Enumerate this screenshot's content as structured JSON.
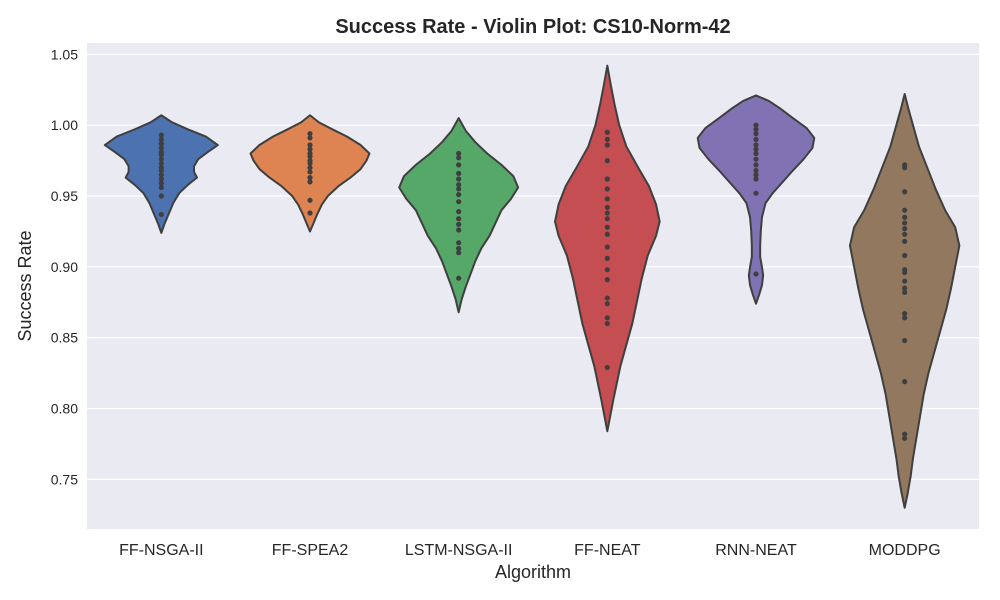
{
  "chart_data": {
    "type": "violin",
    "title": "Success Rate - Violin Plot: CS10-Norm-42",
    "xlabel": "Algorithm",
    "ylabel": "Success Rate",
    "ylim": [
      0.715,
      1.058
    ],
    "yticks": [
      "0.75",
      "0.80",
      "0.85",
      "0.90",
      "0.95",
      "1.00",
      "1.05"
    ],
    "ytick_values": [
      0.75,
      0.8,
      0.85,
      0.9,
      0.95,
      1.0,
      1.05
    ],
    "grid": true,
    "background": "#eaeaf2",
    "categories": [
      "FF-NSGA-II",
      "FF-SPEA2",
      "LSTM-NSGA-II",
      "FF-NEAT",
      "RNN-NEAT",
      "MODDPG"
    ],
    "series": [
      {
        "category": "FF-NSGA-II",
        "color": "#4c72b0",
        "range": [
          0.924,
          1.007
        ],
        "density": [
          [
            0.924,
            0.0
          ],
          [
            0.93,
            0.05
          ],
          [
            0.937,
            0.12
          ],
          [
            0.945,
            0.2
          ],
          [
            0.952,
            0.3
          ],
          [
            0.958,
            0.45
          ],
          [
            0.963,
            0.6
          ],
          [
            0.967,
            0.55
          ],
          [
            0.971,
            0.55
          ],
          [
            0.976,
            0.62
          ],
          [
            0.981,
            0.78
          ],
          [
            0.986,
            0.95
          ],
          [
            0.992,
            0.75
          ],
          [
            0.997,
            0.45
          ],
          [
            1.002,
            0.18
          ],
          [
            1.007,
            0.0
          ]
        ],
        "points": [
          0.993,
          0.99,
          0.987,
          0.984,
          0.981,
          0.979,
          0.976,
          0.973,
          0.97,
          0.968,
          0.965,
          0.962,
          0.959,
          0.956,
          0.95,
          0.937
        ]
      },
      {
        "category": "FF-SPEA2",
        "color": "#dd8452",
        "range": [
          0.925,
          1.007
        ],
        "density": [
          [
            0.925,
            0.0
          ],
          [
            0.931,
            0.06
          ],
          [
            0.937,
            0.12
          ],
          [
            0.944,
            0.2
          ],
          [
            0.95,
            0.3
          ],
          [
            0.957,
            0.48
          ],
          [
            0.963,
            0.68
          ],
          [
            0.969,
            0.85
          ],
          [
            0.975,
            0.95
          ],
          [
            0.98,
            1.0
          ],
          [
            0.986,
            0.85
          ],
          [
            0.992,
            0.62
          ],
          [
            0.997,
            0.38
          ],
          [
            1.002,
            0.15
          ],
          [
            1.007,
            0.0
          ]
        ],
        "points": [
          0.994,
          0.991,
          0.986,
          0.983,
          0.98,
          0.978,
          0.975,
          0.973,
          0.97,
          0.967,
          0.963,
          0.96,
          0.947,
          0.938
        ]
      },
      {
        "category": "LSTM-NSGA-II",
        "color": "#55a868",
        "range": [
          0.868,
          1.005
        ],
        "density": [
          [
            0.868,
            0.0
          ],
          [
            0.877,
            0.05
          ],
          [
            0.886,
            0.12
          ],
          [
            0.895,
            0.2
          ],
          [
            0.904,
            0.28
          ],
          [
            0.913,
            0.38
          ],
          [
            0.922,
            0.52
          ],
          [
            0.931,
            0.62
          ],
          [
            0.94,
            0.72
          ],
          [
            0.948,
            0.88
          ],
          [
            0.956,
            1.0
          ],
          [
            0.964,
            0.92
          ],
          [
            0.972,
            0.72
          ],
          [
            0.98,
            0.48
          ],
          [
            0.988,
            0.28
          ],
          [
            0.996,
            0.12
          ],
          [
            1.005,
            0.0
          ]
        ],
        "points": [
          0.98,
          0.977,
          0.972,
          0.966,
          0.962,
          0.958,
          0.955,
          0.951,
          0.946,
          0.939,
          0.934,
          0.93,
          0.926,
          0.917,
          0.913,
          0.91,
          0.892
        ]
      },
      {
        "category": "FF-NEAT",
        "color": "#c44e52",
        "range": [
          0.784,
          1.042
        ],
        "density": [
          [
            0.784,
            0.0
          ],
          [
            0.795,
            0.05
          ],
          [
            0.806,
            0.1
          ],
          [
            0.818,
            0.16
          ],
          [
            0.83,
            0.22
          ],
          [
            0.845,
            0.32
          ],
          [
            0.86,
            0.42
          ],
          [
            0.876,
            0.5
          ],
          [
            0.892,
            0.58
          ],
          [
            0.908,
            0.68
          ],
          [
            0.922,
            0.82
          ],
          [
            0.932,
            0.88
          ],
          [
            0.944,
            0.82
          ],
          [
            0.957,
            0.7
          ],
          [
            0.97,
            0.52
          ],
          [
            0.985,
            0.32
          ],
          [
            1.0,
            0.2
          ],
          [
            1.015,
            0.12
          ],
          [
            1.028,
            0.06
          ],
          [
            1.042,
            0.0
          ]
        ],
        "points": [
          0.995,
          0.99,
          0.986,
          0.975,
          0.962,
          0.955,
          0.948,
          0.942,
          0.938,
          0.934,
          0.928,
          0.923,
          0.914,
          0.906,
          0.898,
          0.891,
          0.878,
          0.874,
          0.864,
          0.86,
          0.829
        ]
      },
      {
        "category": "RNN-NEAT",
        "color": "#8172b3",
        "range": [
          0.874,
          1.021
        ],
        "density": [
          [
            0.874,
            0.0
          ],
          [
            0.88,
            0.05
          ],
          [
            0.887,
            0.1
          ],
          [
            0.894,
            0.12
          ],
          [
            0.9,
            0.1
          ],
          [
            0.907,
            0.07
          ],
          [
            0.915,
            0.07
          ],
          [
            0.925,
            0.08
          ],
          [
            0.935,
            0.1
          ],
          [
            0.945,
            0.16
          ],
          [
            0.952,
            0.28
          ],
          [
            0.96,
            0.45
          ],
          [
            0.968,
            0.62
          ],
          [
            0.976,
            0.8
          ],
          [
            0.984,
            0.95
          ],
          [
            0.991,
            0.98
          ],
          [
            0.998,
            0.85
          ],
          [
            1.005,
            0.62
          ],
          [
            1.012,
            0.4
          ],
          [
            1.017,
            0.22
          ],
          [
            1.021,
            0.0
          ]
        ],
        "points": [
          1.0,
          0.997,
          0.994,
          0.99,
          0.986,
          0.983,
          0.98,
          0.976,
          0.972,
          0.968,
          0.965,
          0.962,
          0.952,
          0.895
        ]
      },
      {
        "category": "MODDPG",
        "color": "#937860",
        "range": [
          0.73,
          1.022
        ],
        "density": [
          [
            0.73,
            0.0
          ],
          [
            0.74,
            0.05
          ],
          [
            0.752,
            0.1
          ],
          [
            0.765,
            0.14
          ],
          [
            0.78,
            0.2
          ],
          [
            0.795,
            0.26
          ],
          [
            0.81,
            0.32
          ],
          [
            0.825,
            0.4
          ],
          [
            0.84,
            0.5
          ],
          [
            0.855,
            0.6
          ],
          [
            0.87,
            0.7
          ],
          [
            0.885,
            0.78
          ],
          [
            0.9,
            0.85
          ],
          [
            0.915,
            0.92
          ],
          [
            0.928,
            0.85
          ],
          [
            0.94,
            0.68
          ],
          [
            0.955,
            0.52
          ],
          [
            0.97,
            0.38
          ],
          [
            0.985,
            0.24
          ],
          [
            1.0,
            0.14
          ],
          [
            1.012,
            0.06
          ],
          [
            1.022,
            0.0
          ]
        ],
        "points": [
          0.972,
          0.97,
          0.953,
          0.94,
          0.935,
          0.931,
          0.927,
          0.923,
          0.918,
          0.908,
          0.898,
          0.896,
          0.89,
          0.885,
          0.882,
          0.867,
          0.864,
          0.848,
          0.819,
          0.782,
          0.779
        ]
      }
    ]
  }
}
